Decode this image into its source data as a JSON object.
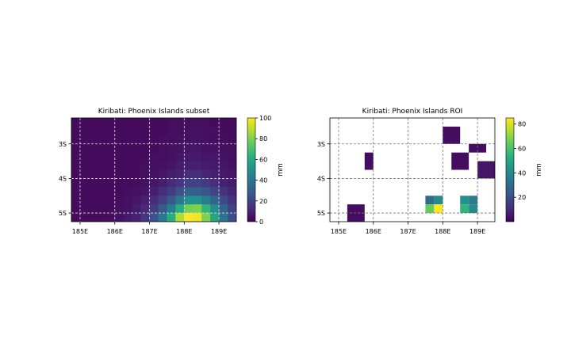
{
  "chart_data": [
    {
      "type": "heatmap",
      "title": "Kiribati: Phoenix Islands subset",
      "colormap": "viridis",
      "colorbar": {
        "label": "mm",
        "min": 0,
        "max": 100,
        "ticks": [
          0,
          20,
          40,
          60,
          80,
          100
        ]
      },
      "x_ticks": [
        {
          "value": 185,
          "label": "185E"
        },
        {
          "value": 186,
          "label": "186E"
        },
        {
          "value": 187,
          "label": "187E"
        },
        {
          "value": 188,
          "label": "188E"
        },
        {
          "value": 189,
          "label": "189E"
        }
      ],
      "y_ticks": [
        {
          "value": -3,
          "label": "3S"
        },
        {
          "value": -4,
          "label": "4S"
        },
        {
          "value": -5,
          "label": "5S"
        }
      ],
      "x_extent": [
        184.75,
        189.5
      ],
      "y_extent": [
        -5.25,
        -2.25
      ],
      "grid": true,
      "grid_x0": 184.75,
      "grid_y0": -2.25,
      "cell": 0.25,
      "values": [
        [
          3,
          3,
          3,
          3,
          3,
          3,
          3,
          3,
          3,
          3,
          3,
          4,
          4,
          4,
          4,
          4,
          3,
          3,
          3
        ],
        [
          3,
          3,
          3,
          3,
          3,
          3,
          3,
          3,
          3,
          3,
          3,
          4,
          4,
          5,
          5,
          4,
          4,
          3,
          3
        ],
        [
          3,
          3,
          3,
          3,
          3,
          3,
          3,
          3,
          3,
          3,
          4,
          4,
          5,
          5,
          5,
          5,
          4,
          4,
          3
        ],
        [
          3,
          3,
          3,
          3,
          3,
          3,
          3,
          3,
          3,
          3,
          4,
          5,
          5,
          6,
          6,
          5,
          5,
          4,
          4
        ],
        [
          3,
          3,
          3,
          3,
          3,
          3,
          3,
          3,
          3,
          4,
          4,
          5,
          6,
          7,
          7,
          6,
          6,
          5,
          4
        ],
        [
          3,
          3,
          3,
          3,
          3,
          3,
          3,
          3,
          4,
          4,
          5,
          6,
          8,
          9,
          9,
          8,
          7,
          6,
          5
        ],
        [
          3,
          3,
          3,
          3,
          3,
          3,
          3,
          3,
          4,
          5,
          6,
          8,
          10,
          13,
          13,
          11,
          9,
          7,
          6
        ],
        [
          3,
          3,
          3,
          3,
          3,
          3,
          3,
          4,
          5,
          6,
          9,
          12,
          16,
          20,
          20,
          17,
          13,
          10,
          8
        ],
        [
          3,
          3,
          3,
          3,
          3,
          3,
          4,
          5,
          6,
          9,
          13,
          18,
          25,
          30,
          30,
          26,
          20,
          15,
          11
        ],
        [
          3,
          3,
          3,
          3,
          3,
          4,
          5,
          6,
          9,
          13,
          19,
          27,
          40,
          50,
          50,
          42,
          32,
          22,
          15
        ],
        [
          3,
          3,
          3,
          3,
          3,
          4,
          5,
          8,
          12,
          18,
          28,
          42,
          62,
          78,
          80,
          65,
          48,
          32,
          20
        ],
        [
          3,
          3,
          3,
          3,
          4,
          5,
          7,
          10,
          16,
          25,
          40,
          62,
          88,
          100,
          98,
          80,
          58,
          38,
          24
        ]
      ]
    },
    {
      "type": "heatmap",
      "title": "Kiribati: Phoenix Islands ROI",
      "colormap": "viridis",
      "colorbar": {
        "label": "mm",
        "min": 0,
        "max": 85,
        "ticks": [
          20,
          40,
          60,
          80
        ]
      },
      "x_ticks": [
        {
          "value": 185,
          "label": "185E"
        },
        {
          "value": 186,
          "label": "186E"
        },
        {
          "value": 187,
          "label": "187E"
        },
        {
          "value": 188,
          "label": "188E"
        },
        {
          "value": 189,
          "label": "189E"
        }
      ],
      "y_ticks": [
        {
          "value": -3,
          "label": "3S"
        },
        {
          "value": -4,
          "label": "4S"
        },
        {
          "value": -5,
          "label": "5S"
        }
      ],
      "x_extent": [
        184.75,
        189.5
      ],
      "y_extent": [
        -5.25,
        -2.25
      ],
      "grid": true,
      "cells": [
        {
          "lon0": 188.0,
          "lon1": 188.5,
          "lat0": -2.5,
          "lat1": -3.0,
          "value": 3
        },
        {
          "lon0": 188.75,
          "lon1": 189.25,
          "lat0": -3.0,
          "lat1": -3.25,
          "value": 3
        },
        {
          "lon0": 188.25,
          "lon1": 188.75,
          "lat0": -3.25,
          "lat1": -3.75,
          "value": 3
        },
        {
          "lon0": 189.0,
          "lon1": 189.5,
          "lat0": -3.5,
          "lat1": -4.0,
          "value": 5
        },
        {
          "lon0": 185.75,
          "lon1": 186.0,
          "lat0": -3.25,
          "lat1": -3.75,
          "value": 3
        },
        {
          "lon0": 185.25,
          "lon1": 185.75,
          "lat0": -4.75,
          "lat1": -5.25,
          "value": 3
        },
        {
          "lon0": 187.5,
          "lon1": 187.75,
          "lat0": -4.5,
          "lat1": -4.75,
          "value": 30
        },
        {
          "lon0": 187.75,
          "lon1": 188.0,
          "lat0": -4.5,
          "lat1": -4.75,
          "value": 40
        },
        {
          "lon0": 187.5,
          "lon1": 187.75,
          "lat0": -4.75,
          "lat1": -5.0,
          "value": 65
        },
        {
          "lon0": 187.75,
          "lon1": 188.0,
          "lat0": -4.75,
          "lat1": -5.0,
          "value": 85
        },
        {
          "lon0": 188.5,
          "lon1": 188.75,
          "lat0": -4.5,
          "lat1": -4.75,
          "value": 42
        },
        {
          "lon0": 188.75,
          "lon1": 189.0,
          "lat0": -4.5,
          "lat1": -4.75,
          "value": 35
        },
        {
          "lon0": 188.5,
          "lon1": 188.75,
          "lat0": -4.75,
          "lat1": -5.0,
          "value": 55
        },
        {
          "lon0": 188.75,
          "lon1": 189.0,
          "lat0": -4.75,
          "lat1": -5.0,
          "value": 40
        }
      ]
    }
  ]
}
